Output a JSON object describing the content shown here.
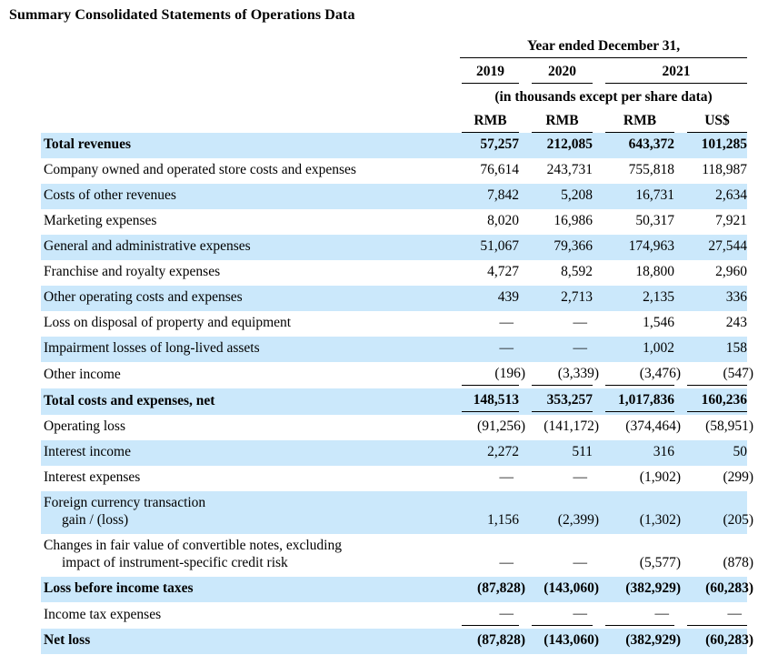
{
  "title": "Summary Consolidated Statements of Operations Data",
  "colors": {
    "row_shade": "#cbe8fb",
    "rule": "#000000",
    "text": "#000000"
  },
  "table": {
    "period_header": "Year ended December 31,",
    "unit_note": "(in thousands except per share data)",
    "year_columns": [
      "2019",
      "2020",
      "2021"
    ],
    "currency_columns": [
      "RMB",
      "RMB",
      "RMB",
      "US$"
    ],
    "rows": [
      {
        "label": "Total revenues",
        "bold": true,
        "values": [
          "57,257",
          "212,085",
          "643,372",
          "101,285"
        ]
      },
      {
        "label": "Company owned and operated store costs and expenses",
        "values": [
          "76,614",
          "243,731",
          "755,818",
          "118,987"
        ]
      },
      {
        "label": "Costs of other revenues",
        "values": [
          "7,842",
          "5,208",
          "16,731",
          "2,634"
        ]
      },
      {
        "label": "Marketing expenses",
        "values": [
          "8,020",
          "16,986",
          "50,317",
          "7,921"
        ]
      },
      {
        "label": "General and administrative expenses",
        "values": [
          "51,067",
          "79,366",
          "174,963",
          "27,544"
        ]
      },
      {
        "label": "Franchise and royalty expenses",
        "values": [
          "4,727",
          "8,592",
          "18,800",
          "2,960"
        ]
      },
      {
        "label": "Other operating costs and expenses",
        "values": [
          "439",
          "2,713",
          "2,135",
          "336"
        ]
      },
      {
        "label": "Loss on disposal of property and equipment",
        "values": [
          "—",
          "—",
          "1,546",
          "243"
        ]
      },
      {
        "label": "Impairment losses of long-lived assets",
        "values": [
          "—",
          "—",
          "1,002",
          "158"
        ]
      },
      {
        "label": "Other income",
        "rule_below": true,
        "values": [
          "(196)",
          "(3,339)",
          "(3,476)",
          "(547)"
        ]
      },
      {
        "label": "Total costs and expenses, net",
        "bold": true,
        "rule_below": true,
        "values": [
          "148,513",
          "353,257",
          "1,017,836",
          "160,236"
        ]
      },
      {
        "label": "Operating loss",
        "values": [
          "(91,256)",
          "(141,172)",
          "(374,464)",
          "(58,951)"
        ]
      },
      {
        "label": "Interest income",
        "values": [
          "2,272",
          "511",
          "316",
          "50"
        ]
      },
      {
        "label": "Interest expenses",
        "values": [
          "—",
          "—",
          "(1,902)",
          "(299)"
        ]
      },
      {
        "label": "Foreign currency transaction",
        "label2": "gain / (loss)",
        "values": [
          "1,156",
          "(2,399)",
          "(1,302)",
          "(205)"
        ]
      },
      {
        "label": "Changes in fair value of convertible notes, excluding",
        "label2": "impact of instrument-specific credit risk",
        "values": [
          "—",
          "—",
          "(5,577)",
          "(878)"
        ]
      },
      {
        "label": "Loss before income taxes",
        "bold": true,
        "values": [
          "(87,828)",
          "(143,060)",
          "(382,929)",
          "(60,283)"
        ]
      },
      {
        "label": "Income tax expenses",
        "rule_below": true,
        "values": [
          "—",
          "—",
          "—",
          "—"
        ]
      },
      {
        "label": "Net loss",
        "bold": true,
        "values": [
          "(87,828)",
          "(143,060)",
          "(382,929)",
          "(60,283)"
        ]
      }
    ]
  }
}
